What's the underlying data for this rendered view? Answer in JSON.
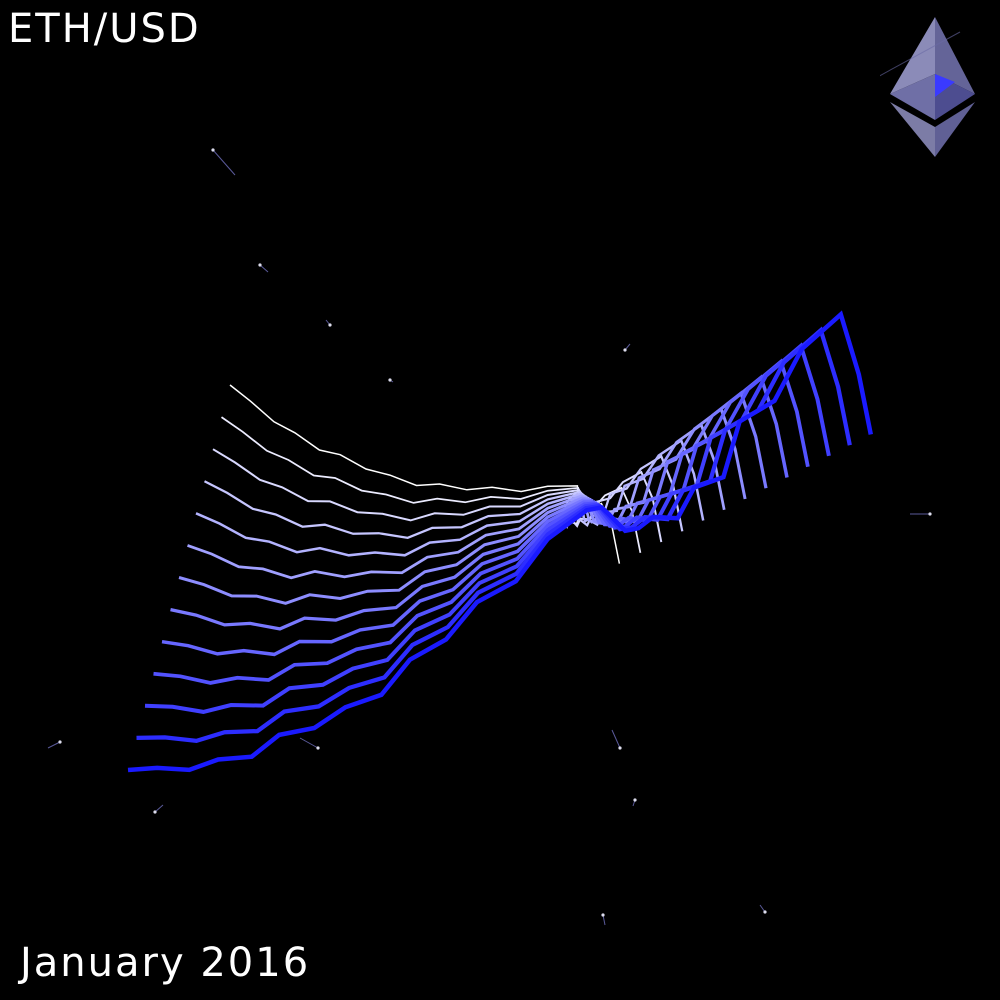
{
  "header": {
    "pair": "ETH/USD"
  },
  "footer": {
    "period": "January 2016"
  },
  "logo": {
    "icon": "ethereum-icon",
    "face_color": "#8a8ab8",
    "accent_color": "#3333ff"
  },
  "palette": {
    "background": "#000000",
    "line_start": "#ffffff",
    "line_end": "#1a1aff"
  },
  "visual": {
    "style": "twisted ribbon of repeated price lines",
    "line_count": 13,
    "direction": "rising"
  }
}
